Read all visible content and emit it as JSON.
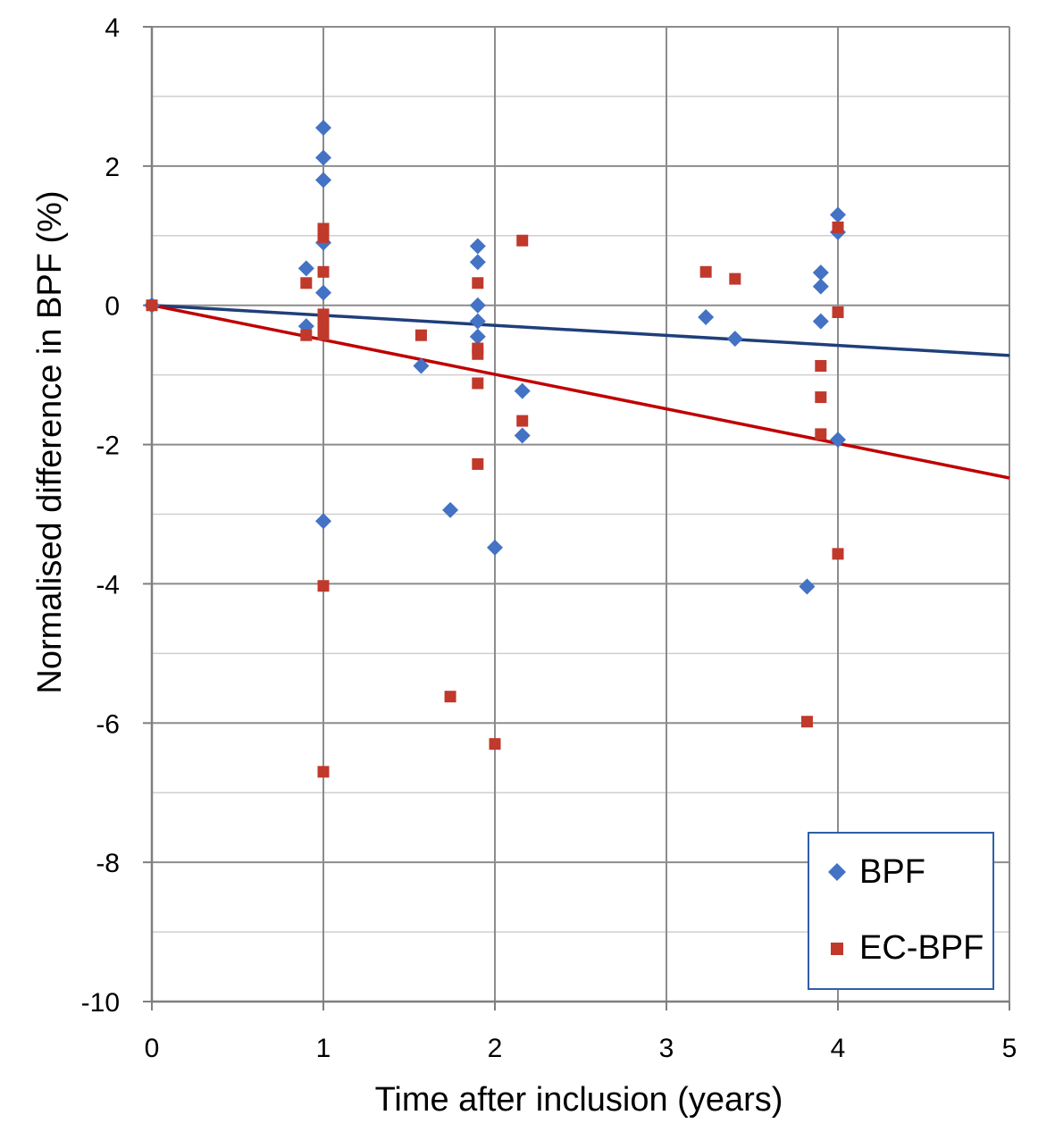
{
  "chart_data": {
    "type": "scatter",
    "title": "",
    "xlabel": "Time after inclusion (years)",
    "ylabel": "Normalised difference in  BPF (%)",
    "xlim": [
      0,
      5
    ],
    "ylim": [
      -10,
      4
    ],
    "x_ticks": [
      "0",
      "1",
      "2",
      "3",
      "4",
      "5"
    ],
    "y_ticks": [
      "4",
      "2",
      "0",
      "-2",
      "-4",
      "-6",
      "-8",
      "-10"
    ],
    "grid": true,
    "legend_position": "bottom-right",
    "series": [
      {
        "name": "BPF",
        "marker": "diamond",
        "color": "#4472c4",
        "points": [
          [
            0,
            0.0
          ],
          [
            0.9,
            0.53
          ],
          [
            0.9,
            -0.3
          ],
          [
            1.0,
            2.55
          ],
          [
            1.0,
            2.12
          ],
          [
            1.0,
            1.8
          ],
          [
            1.0,
            0.9
          ],
          [
            1.0,
            0.18
          ],
          [
            1.0,
            -3.1
          ],
          [
            1.57,
            -0.87
          ],
          [
            1.74,
            -2.94
          ],
          [
            1.9,
            0.85
          ],
          [
            1.9,
            0.62
          ],
          [
            1.9,
            0.0
          ],
          [
            1.9,
            -0.23
          ],
          [
            1.9,
            -0.45
          ],
          [
            2.0,
            -3.48
          ],
          [
            2.16,
            -1.23
          ],
          [
            2.16,
            -1.87
          ],
          [
            3.23,
            -0.17
          ],
          [
            3.4,
            -0.48
          ],
          [
            3.82,
            -4.04
          ],
          [
            3.9,
            0.47
          ],
          [
            3.9,
            0.27
          ],
          [
            3.9,
            -0.23
          ],
          [
            4.0,
            1.3
          ],
          [
            4.0,
            1.05
          ],
          [
            4.0,
            -1.93
          ]
        ]
      },
      {
        "name": "EC-BPF",
        "marker": "square",
        "color": "#c0392b",
        "points": [
          [
            0,
            0.0
          ],
          [
            0.9,
            0.32
          ],
          [
            0.9,
            -0.43
          ],
          [
            1.0,
            1.1
          ],
          [
            1.0,
            0.98
          ],
          [
            1.0,
            0.48
          ],
          [
            1.0,
            -0.13
          ],
          [
            1.0,
            -0.27
          ],
          [
            1.0,
            -0.42
          ],
          [
            1.0,
            -4.03
          ],
          [
            1.0,
            -6.7
          ],
          [
            1.57,
            -0.43
          ],
          [
            1.74,
            -5.62
          ],
          [
            1.9,
            0.32
          ],
          [
            1.9,
            -0.62
          ],
          [
            1.9,
            -0.7
          ],
          [
            1.9,
            -1.12
          ],
          [
            1.9,
            -2.28
          ],
          [
            2.0,
            -6.3
          ],
          [
            2.16,
            0.93
          ],
          [
            2.16,
            -1.66
          ],
          [
            3.23,
            0.48
          ],
          [
            3.4,
            0.38
          ],
          [
            3.82,
            -5.98
          ],
          [
            3.9,
            -0.87
          ],
          [
            3.9,
            -1.32
          ],
          [
            3.9,
            -1.85
          ],
          [
            4.0,
            1.12
          ],
          [
            4.0,
            -0.1
          ],
          [
            4.0,
            -3.57
          ]
        ]
      }
    ],
    "trendlines": [
      {
        "series": "BPF",
        "color": "#1f3f7a",
        "from": [
          0,
          0
        ],
        "to": [
          5,
          -0.72
        ]
      },
      {
        "series": "EC-BPF",
        "color": "#c00000",
        "from": [
          0,
          0
        ],
        "to": [
          5,
          -2.48
        ]
      }
    ]
  }
}
